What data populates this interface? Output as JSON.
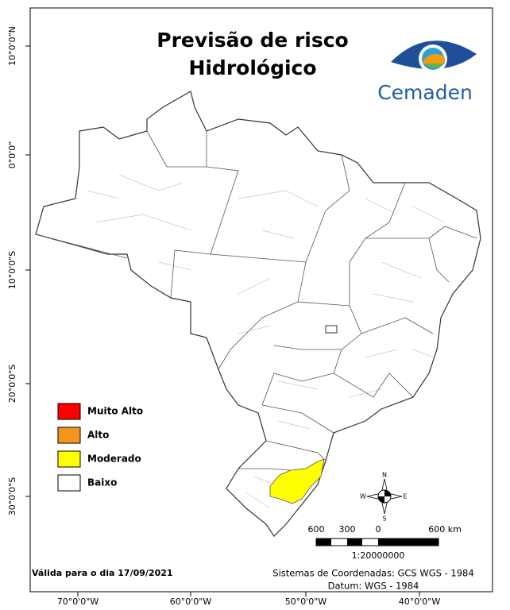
{
  "title": [
    "Previsão de risco",
    "Hidrológico"
  ],
  "logo": "Cemaden",
  "lat_labels": [
    "10°0'0\"N",
    "0°0'0\"",
    "10°0'0\"S",
    "20°0'0\"S",
    "30°0'0\"S"
  ],
  "lon_labels": [
    "70°0'0\"W",
    "60°0'0\"W",
    "50°0'0\"W",
    "40°0'0\"W"
  ],
  "legend": {
    "items": [
      {
        "label": "Muito Alto",
        "color": "#ff0000"
      },
      {
        "label": "Alto",
        "color": "#f7941d"
      },
      {
        "label": "Moderado",
        "color": "#ffff00"
      },
      {
        "label": "Baixo",
        "color": "#ffffff"
      }
    ]
  },
  "scale": {
    "labels": [
      "600",
      "300",
      "0",
      "600 km"
    ],
    "ratio": "1:20000000"
  },
  "compass": {
    "n": "N",
    "s": "S",
    "e": "E",
    "w": "W"
  },
  "footer": {
    "valid": "Válida para o dia 17/09/2021",
    "coords": "Sistemas de Coordenadas: GCS WGS - 1984",
    "datum": "Datum: WGS - 1984"
  }
}
